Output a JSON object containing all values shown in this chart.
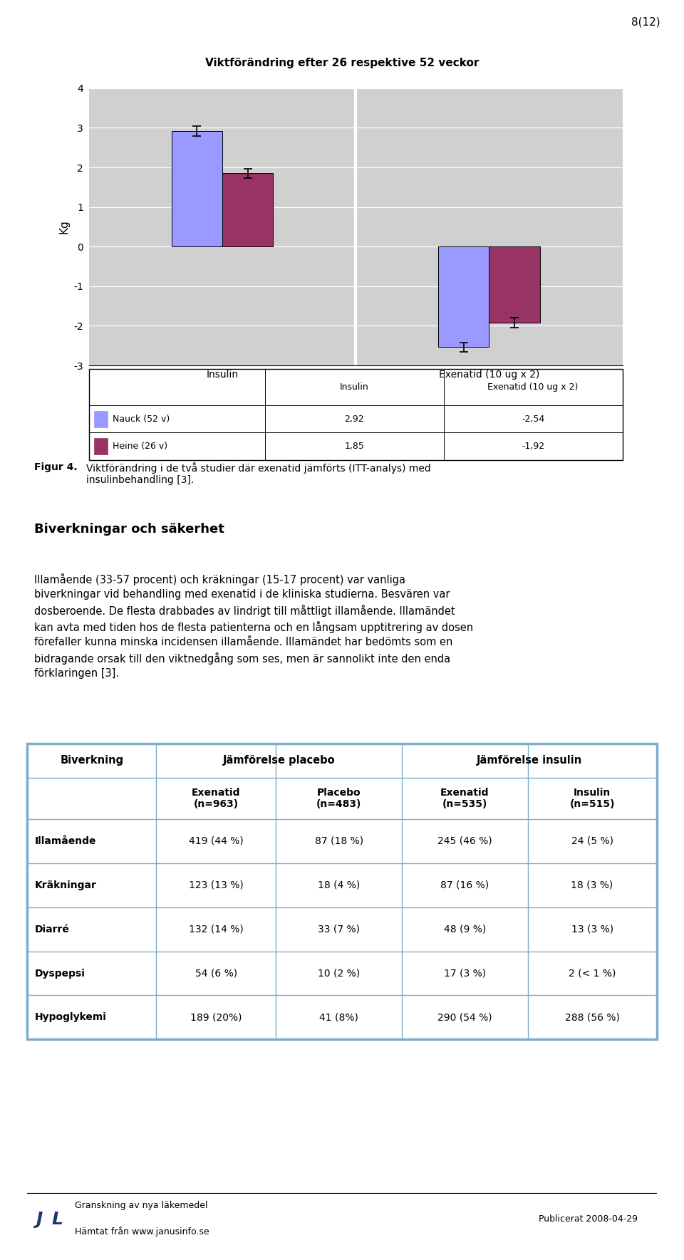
{
  "page_number": "8(12)",
  "chart_title": "Viktförändring efter 26 respektive 52 veckor",
  "ylabel": "Kg",
  "bar_groups": [
    "Insulin",
    "Exenatid (10 ug x 2)"
  ],
  "nauck_values": [
    2.92,
    -2.54
  ],
  "heine_values": [
    1.85,
    -1.92
  ],
  "nauck_errors": [
    0.12,
    0.12
  ],
  "heine_errors": [
    0.12,
    0.12
  ],
  "nauck_color": "#9999ff",
  "heine_color": "#993366",
  "nauck_label": "Nauck (52 v)",
  "heine_label": "Heine (26 v)",
  "ylim": [
    -3,
    4
  ],
  "yticks": [
    -3,
    -2,
    -1,
    0,
    1,
    2,
    3,
    4
  ],
  "chart_bg": "#d0d0d0",
  "legend_table_values": [
    [
      "2,92",
      "-2,54"
    ],
    [
      "1,85",
      "-1,92"
    ]
  ],
  "section_header": "Biverkningar och säkerhet",
  "body_text1": "Illamående (33-57 procent) och kräkningar (15-17 procent) var vanliga biverkningar vid behandling med exenatid i de kliniska studierna. Besvären var dosberoende. De flesta drabbades av lindrigt till måttligt illamående. Illamändet kan avta med tiden hos de flesta patienterna och en långsam upptitrering av dosen förefaller kunna minska incidensen illamående. Illamändet har bedömts som en bidragande orsak till den viktnedgång som ses, men är sannolikt inte den enda förklaringen [3].",
  "table_headers_col1": "Biverkning",
  "table_headers_col2a": "Jämförelse placebo",
  "table_headers_col2b": "Jämförelse insulin",
  "table_sub_headers": [
    "Exenatid\n(n=963)",
    "Placebo\n(n=483)",
    "Exenatid\n(n=535)",
    "Insulin\n(n=515)"
  ],
  "table_rows": [
    [
      "Illamående",
      "419 (44 %)",
      "87 (18 %)",
      "245 (46 %)",
      "24 (5 %)"
    ],
    [
      "Kräkningar",
      "123 (13 %)",
      "18 (4 %)",
      "87 (16 %)",
      "18 (3 %)"
    ],
    [
      "Diarré",
      "132 (14 %)",
      "33 (7 %)",
      "48 (9 %)",
      "13 (3 %)"
    ],
    [
      "Dyspepsi",
      "54 (6 %)",
      "10 (2 %)",
      "17 (3 %)",
      "2 (< 1 %)"
    ],
    [
      "Hypoglykemi",
      "189 (20%)",
      "41 (8%)",
      "290 (54 %)",
      "288 (56 %)"
    ]
  ],
  "footer_left1": "Granskning av nya läkemedel",
  "footer_left2": "Hämtat från www.janusinfo.se",
  "footer_right": "Publicerat 2008-04-29",
  "table_border_color": "#7aadcc",
  "bg_color": "#ffffff"
}
